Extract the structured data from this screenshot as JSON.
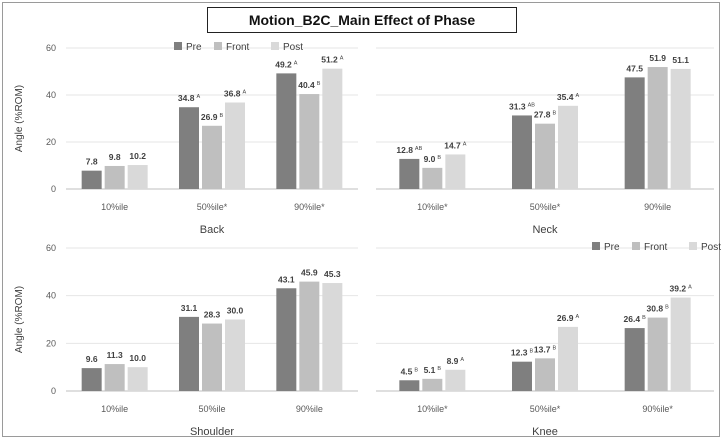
{
  "title": "Motion_B2C_Main Effect of Phase",
  "chart_data": [
    {
      "type": "bar",
      "title": "Back",
      "ylabel": "Angle (%ROM)",
      "ylim": [
        0,
        60
      ],
      "yticks": [
        0,
        20,
        40,
        60
      ],
      "categories": [
        "10%ile",
        "50%ile*",
        "90%ile*"
      ],
      "legend": "top-right",
      "series": [
        {
          "name": "Pre",
          "color": "#7f7f7f",
          "values": [
            7.8,
            34.8,
            49.2
          ],
          "labels": [
            "7.8",
            "34.8",
            "49.2"
          ],
          "sig": [
            "",
            "A",
            "A"
          ]
        },
        {
          "name": "Front",
          "color": "#bfbfbf",
          "values": [
            9.8,
            26.9,
            40.4
          ],
          "labels": [
            "9.8",
            "26.9",
            "40.4"
          ],
          "sig": [
            "",
            "B",
            "B"
          ]
        },
        {
          "name": "Post",
          "color": "#d9d9d9",
          "values": [
            10.2,
            36.8,
            51.2
          ],
          "labels": [
            "10.2",
            "36.8",
            "51.2"
          ],
          "sig": [
            "",
            "A",
            "A"
          ]
        }
      ]
    },
    {
      "type": "bar",
      "title": "Neck",
      "ylabel": "",
      "ylim": [
        0,
        60
      ],
      "yticks": [],
      "categories": [
        "10%ile*",
        "50%ile*",
        "90%ile"
      ],
      "legend": "",
      "series": [
        {
          "name": "Pre",
          "color": "#7f7f7f",
          "values": [
            12.8,
            31.3,
            47.5
          ],
          "labels": [
            "12.8",
            "31.3",
            "47.5"
          ],
          "sig": [
            "AB",
            "AB",
            ""
          ]
        },
        {
          "name": "Front",
          "color": "#bfbfbf",
          "values": [
            9.0,
            27.8,
            51.9
          ],
          "labels": [
            "9.0",
            "27.8",
            "51.9"
          ],
          "sig": [
            "B",
            "B",
            ""
          ]
        },
        {
          "name": "Post",
          "color": "#d9d9d9",
          "values": [
            14.7,
            35.4,
            51.1
          ],
          "labels": [
            "14.7",
            "35.4",
            "51.1"
          ],
          "sig": [
            "A",
            "A",
            ""
          ]
        }
      ]
    },
    {
      "type": "bar",
      "title": "Shoulder",
      "ylabel": "Angle (%ROM)",
      "ylim": [
        0,
        60
      ],
      "yticks": [
        0,
        20,
        40,
        60
      ],
      "categories": [
        "10%ile",
        "50%ile",
        "90%ile"
      ],
      "legend": "",
      "series": [
        {
          "name": "Pre",
          "color": "#7f7f7f",
          "values": [
            9.6,
            31.1,
            43.1
          ],
          "labels": [
            "9.6",
            "31.1",
            "43.1"
          ],
          "sig": [
            "",
            "",
            ""
          ]
        },
        {
          "name": "Front",
          "color": "#bfbfbf",
          "values": [
            11.3,
            28.3,
            45.9
          ],
          "labels": [
            "11.3",
            "28.3",
            "45.9"
          ],
          "sig": [
            "",
            "",
            ""
          ]
        },
        {
          "name": "Post",
          "color": "#d9d9d9",
          "values": [
            10.0,
            30.0,
            45.3
          ],
          "labels": [
            "10.0",
            "30.0",
            "45.3"
          ],
          "sig": [
            "",
            "",
            ""
          ]
        }
      ]
    },
    {
      "type": "bar",
      "title": "Knee",
      "ylabel": "",
      "ylim": [
        0,
        60
      ],
      "yticks": [],
      "categories": [
        "10%ile*",
        "50%ile*",
        "90%ile*"
      ],
      "legend": "top-right",
      "series": [
        {
          "name": "Pre",
          "color": "#7f7f7f",
          "values": [
            4.5,
            12.3,
            26.4
          ],
          "labels": [
            "4.5",
            "12.3",
            "26.4"
          ],
          "sig": [
            "B",
            "B",
            "B"
          ]
        },
        {
          "name": "Front",
          "color": "#bfbfbf",
          "values": [
            5.1,
            13.7,
            30.8
          ],
          "labels": [
            "5.1",
            "13.7",
            "30.8"
          ],
          "sig": [
            "B",
            "B",
            "B"
          ]
        },
        {
          "name": "Post",
          "color": "#d9d9d9",
          "values": [
            8.9,
            26.9,
            39.2
          ],
          "labels": [
            "8.9",
            "26.9",
            "39.2"
          ],
          "sig": [
            "A",
            "A",
            "A"
          ]
        }
      ]
    }
  ]
}
